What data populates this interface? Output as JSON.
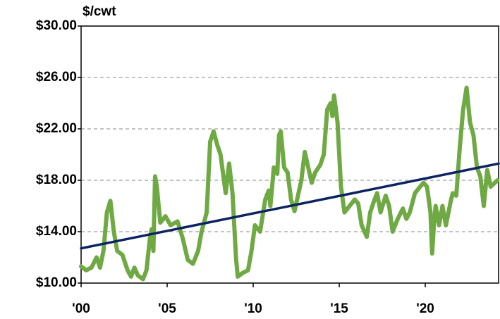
{
  "chart_data": {
    "type": "line",
    "ylabel": "$/cwt",
    "xlim": [
      2000,
      2024.26
    ],
    "xticks": [
      {
        "value": 2000,
        "label": "'00"
      },
      {
        "value": 2005,
        "label": "'05"
      },
      {
        "value": 2010,
        "label": "'10"
      },
      {
        "value": 2015,
        "label": "'15"
      },
      {
        "value": 2020,
        "label": "'20"
      }
    ],
    "ylim": [
      10,
      30
    ],
    "yticks": [
      {
        "value": 10,
        "label": "$10.00"
      },
      {
        "value": 14,
        "label": "$14.00"
      },
      {
        "value": 18,
        "label": "$18.00"
      },
      {
        "value": 22,
        "label": "$22.00"
      },
      {
        "value": 26,
        "label": "$26.00"
      },
      {
        "value": 30,
        "label": "$30.00"
      }
    ],
    "grid": true,
    "series": [
      {
        "color": "#6fa944",
        "x": [
          2000.0,
          2000.3,
          2000.6,
          2000.9,
          2001.1,
          2001.3,
          2001.5,
          2001.7,
          2001.9,
          2002.1,
          2002.4,
          2002.7,
          2002.9,
          2003.1,
          2003.3,
          2003.6,
          2003.8,
          2004.0,
          2004.1,
          2004.2,
          2004.3,
          2004.4,
          2004.6,
          2004.9,
          2005.2,
          2005.6,
          2005.9,
          2006.2,
          2006.5,
          2006.8,
          2007.0,
          2007.3,
          2007.5,
          2007.7,
          2007.9,
          2008.1,
          2008.4,
          2008.6,
          2008.8,
          2009.0,
          2009.1,
          2009.4,
          2009.7,
          2009.9,
          2010.1,
          2010.4,
          2010.7,
          2010.9,
          2011.0,
          2011.2,
          2011.4,
          2011.5,
          2011.6,
          2011.8,
          2012.0,
          2012.2,
          2012.4,
          2012.6,
          2012.8,
          2013.0,
          2013.2,
          2013.4,
          2013.6,
          2013.9,
          2014.1,
          2014.3,
          2014.5,
          2014.6,
          2014.7,
          2014.9,
          2015.1,
          2015.3,
          2015.6,
          2015.9,
          2016.1,
          2016.3,
          2016.6,
          2016.8,
          2017.0,
          2017.2,
          2017.4,
          2017.7,
          2017.9,
          2018.1,
          2018.4,
          2018.7,
          2018.9,
          2019.1,
          2019.4,
          2019.7,
          2019.9,
          2020.1,
          2020.3,
          2020.4,
          2020.5,
          2020.6,
          2020.8,
          2021.0,
          2021.2,
          2021.5,
          2021.6,
          2021.8,
          2022.0,
          2022.2,
          2022.4,
          2022.6,
          2022.8,
          2023.0,
          2023.2,
          2023.4,
          2023.6,
          2023.8,
          2024.2
        ],
        "values": [
          11.3,
          11.0,
          11.2,
          12.0,
          11.2,
          12.5,
          15.5,
          16.4,
          14.0,
          12.5,
          12.2,
          11.0,
          10.5,
          11.2,
          10.6,
          10.3,
          11.0,
          13.5,
          14.2,
          12.5,
          18.3,
          17.5,
          14.7,
          15.2,
          14.5,
          14.8,
          13.5,
          11.8,
          11.5,
          12.5,
          14.0,
          15.5,
          21.0,
          21.8,
          20.8,
          20.0,
          17.0,
          19.3,
          17.0,
          12.0,
          10.5,
          10.8,
          11.0,
          12.5,
          14.5,
          14.0,
          16.5,
          17.2,
          16.0,
          19.0,
          18.5,
          21.5,
          21.8,
          19.0,
          18.6,
          16.5,
          15.6,
          16.8,
          18.0,
          20.2,
          19.0,
          17.8,
          18.6,
          19.2,
          20.0,
          23.5,
          24.0,
          23.0,
          24.6,
          22.5,
          17.5,
          15.5,
          16.0,
          16.5,
          16.2,
          14.5,
          13.6,
          15.5,
          16.3,
          17.0,
          15.5,
          16.8,
          16.0,
          14.0,
          15.0,
          15.8,
          15.0,
          15.5,
          17.0,
          17.5,
          17.8,
          17.5,
          15.5,
          12.3,
          14.5,
          16.0,
          14.5,
          16.0,
          14.5,
          16.5,
          17.0,
          16.8,
          20.5,
          23.5,
          25.2,
          22.5,
          21.5,
          19.0,
          18.3,
          16.0,
          18.8,
          17.5,
          18.0
        ]
      },
      {
        "color": "#0d2260",
        "x": [
          2000,
          2024.26
        ],
        "values": [
          12.7,
          19.3
        ]
      }
    ]
  }
}
